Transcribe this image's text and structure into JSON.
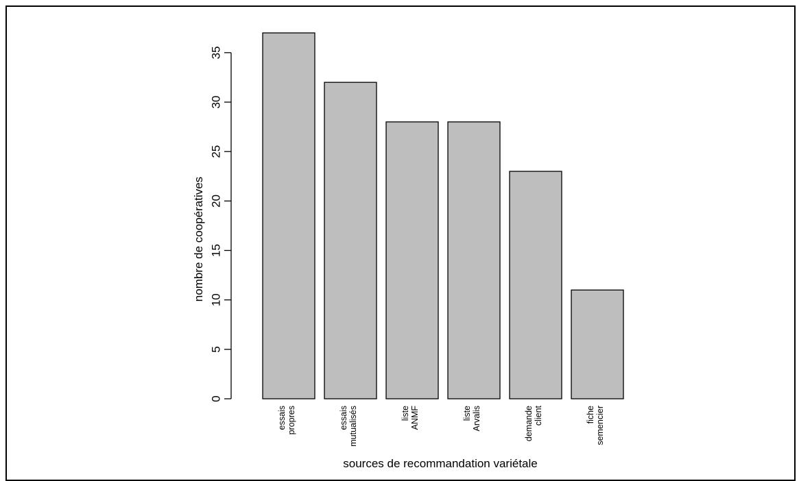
{
  "chart_data": {
    "type": "bar",
    "categories": [
      [
        "essais",
        "propres"
      ],
      [
        "essais",
        "mutualisés"
      ],
      [
        "liste",
        "ANMF"
      ],
      [
        "liste",
        "Arvalis"
      ],
      [
        "demande",
        "client"
      ],
      [
        "fiche",
        "semencier"
      ]
    ],
    "values": [
      37,
      32,
      28,
      28,
      23,
      11
    ],
    "yticks": [
      0,
      5,
      10,
      15,
      20,
      25,
      30,
      35
    ],
    "ylim": [
      0,
      37
    ],
    "xlabel": "sources de recommandation variétale",
    "ylabel": "nombre de coopératives",
    "bar_color": "#bebebe",
    "bar_edge_color": "#000000",
    "grid": false,
    "legend": "none"
  }
}
